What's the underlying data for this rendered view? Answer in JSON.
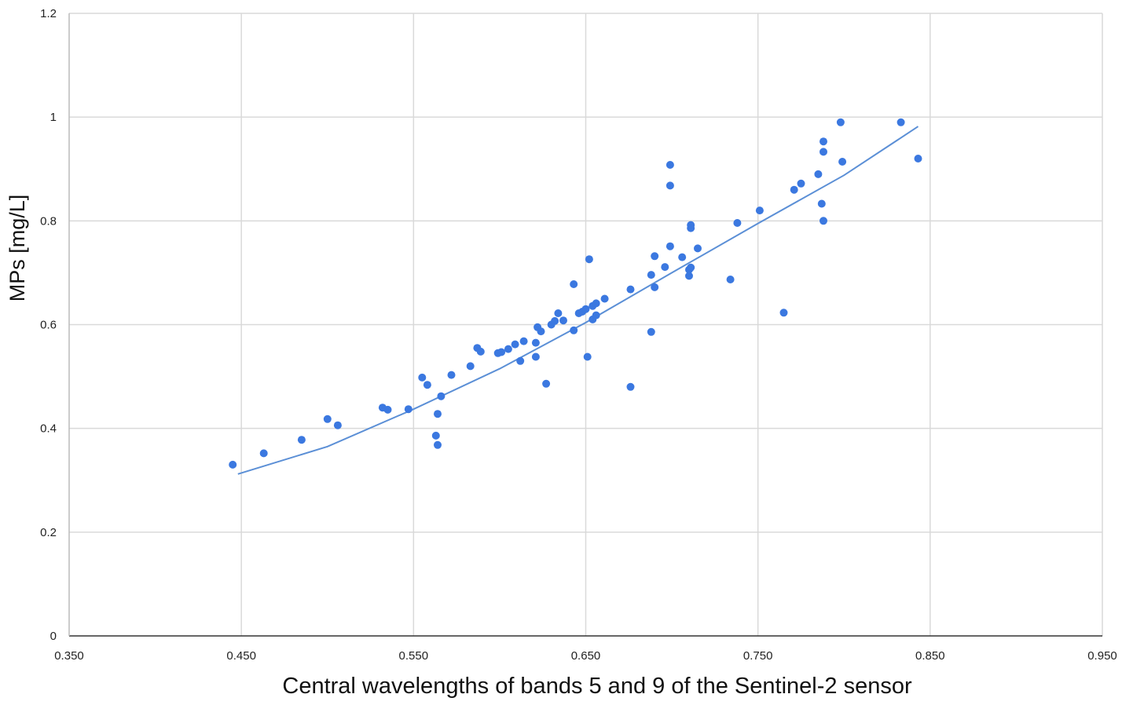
{
  "chart_data": {
    "type": "scatter",
    "title": "",
    "xlabel": "Central wavelengths of bands 5 and 9 of the Sentinel-2 sensor",
    "ylabel": "MPs [mg/L]",
    "xlim": [
      0.35,
      0.95
    ],
    "ylim": [
      0,
      1.2
    ],
    "x_ticks": [
      "0.350",
      "0.450",
      "0.550",
      "0.650",
      "0.750",
      "0.850",
      "0.950"
    ],
    "y_ticks": [
      "0",
      "0.2",
      "0.4",
      "0.6",
      "0.8",
      "1",
      "1.2"
    ],
    "grid": true,
    "legend": "none",
    "point_color": "#3b78e0",
    "trend_color": "#5b8fd6",
    "points": [
      [
        0.445,
        0.33
      ],
      [
        0.463,
        0.352
      ],
      [
        0.485,
        0.378
      ],
      [
        0.5,
        0.418
      ],
      [
        0.506,
        0.406
      ],
      [
        0.532,
        0.44
      ],
      [
        0.535,
        0.436
      ],
      [
        0.547,
        0.437
      ],
      [
        0.555,
        0.498
      ],
      [
        0.558,
        0.484
      ],
      [
        0.563,
        0.386
      ],
      [
        0.564,
        0.368
      ],
      [
        0.564,
        0.428
      ],
      [
        0.566,
        0.462
      ],
      [
        0.572,
        0.503
      ],
      [
        0.583,
        0.52
      ],
      [
        0.587,
        0.555
      ],
      [
        0.589,
        0.548
      ],
      [
        0.599,
        0.545
      ],
      [
        0.601,
        0.547
      ],
      [
        0.605,
        0.553
      ],
      [
        0.609,
        0.562
      ],
      [
        0.612,
        0.53
      ],
      [
        0.614,
        0.568
      ],
      [
        0.621,
        0.538
      ],
      [
        0.621,
        0.565
      ],
      [
        0.622,
        0.595
      ],
      [
        0.624,
        0.587
      ],
      [
        0.627,
        0.486
      ],
      [
        0.63,
        0.6
      ],
      [
        0.632,
        0.607
      ],
      [
        0.634,
        0.622
      ],
      [
        0.637,
        0.608
      ],
      [
        0.643,
        0.678
      ],
      [
        0.643,
        0.589
      ],
      [
        0.646,
        0.622
      ],
      [
        0.648,
        0.625
      ],
      [
        0.65,
        0.63
      ],
      [
        0.651,
        0.538
      ],
      [
        0.652,
        0.726
      ],
      [
        0.654,
        0.636
      ],
      [
        0.654,
        0.61
      ],
      [
        0.656,
        0.641
      ],
      [
        0.656,
        0.618
      ],
      [
        0.661,
        0.65
      ],
      [
        0.676,
        0.668
      ],
      [
        0.676,
        0.48
      ],
      [
        0.688,
        0.696
      ],
      [
        0.688,
        0.586
      ],
      [
        0.69,
        0.732
      ],
      [
        0.69,
        0.672
      ],
      [
        0.696,
        0.711
      ],
      [
        0.699,
        0.908
      ],
      [
        0.699,
        0.868
      ],
      [
        0.699,
        0.751
      ],
      [
        0.706,
        0.73
      ],
      [
        0.71,
        0.706
      ],
      [
        0.71,
        0.694
      ],
      [
        0.711,
        0.792
      ],
      [
        0.711,
        0.786
      ],
      [
        0.711,
        0.71
      ],
      [
        0.715,
        0.747
      ],
      [
        0.734,
        0.687
      ],
      [
        0.738,
        0.796
      ],
      [
        0.751,
        0.82
      ],
      [
        0.765,
        0.623
      ],
      [
        0.771,
        0.86
      ],
      [
        0.775,
        0.872
      ],
      [
        0.785,
        0.89
      ],
      [
        0.787,
        0.833
      ],
      [
        0.788,
        0.8
      ],
      [
        0.788,
        0.933
      ],
      [
        0.788,
        0.953
      ],
      [
        0.798,
        0.99
      ],
      [
        0.799,
        0.914
      ],
      [
        0.833,
        0.99
      ],
      [
        0.843,
        0.92
      ]
    ],
    "trendline": [
      [
        0.448,
        0.312
      ],
      [
        0.5,
        0.365
      ],
      [
        0.55,
        0.437
      ],
      [
        0.6,
        0.515
      ],
      [
        0.65,
        0.604
      ],
      [
        0.7,
        0.7
      ],
      [
        0.75,
        0.795
      ],
      [
        0.8,
        0.888
      ],
      [
        0.843,
        0.982
      ]
    ]
  }
}
